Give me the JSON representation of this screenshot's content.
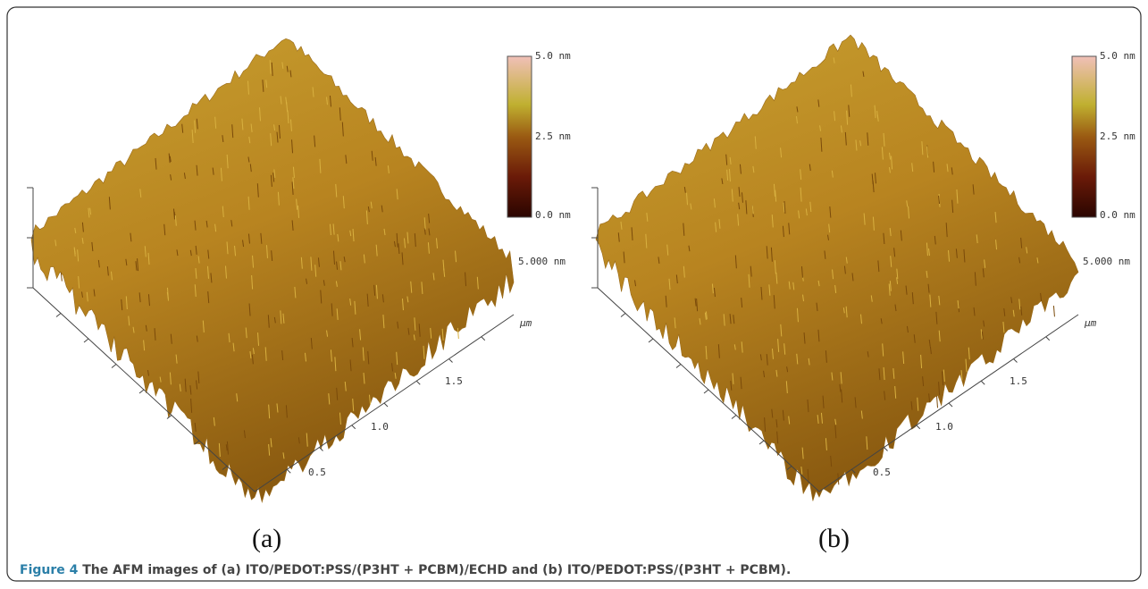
{
  "panels": [
    {
      "colorbar_ticks": [
        "5.0 nm",
        "2.5 nm",
        "0.0 nm"
      ],
      "z_scale": "5.000 nm",
      "unit": "μm",
      "axis_ticks": [
        "0.5",
        "1.0",
        "1.5"
      ],
      "label": "(a)"
    },
    {
      "colorbar_ticks": [
        "5.0 nm",
        "2.5 nm",
        "0.0 nm"
      ],
      "z_scale": "5.000 nm",
      "unit": "μm",
      "axis_ticks": [
        "0.5",
        "1.0",
        "1.5"
      ],
      "label": "(b)"
    }
  ],
  "caption": {
    "label": "Figure 4",
    "text": "The AFM images of (a) ITO/PEDOT:PSS/(P3HT + PCBM)/ECHD and (b) ITO/PEDOT:PSS/(P3HT + PCBM)."
  }
}
